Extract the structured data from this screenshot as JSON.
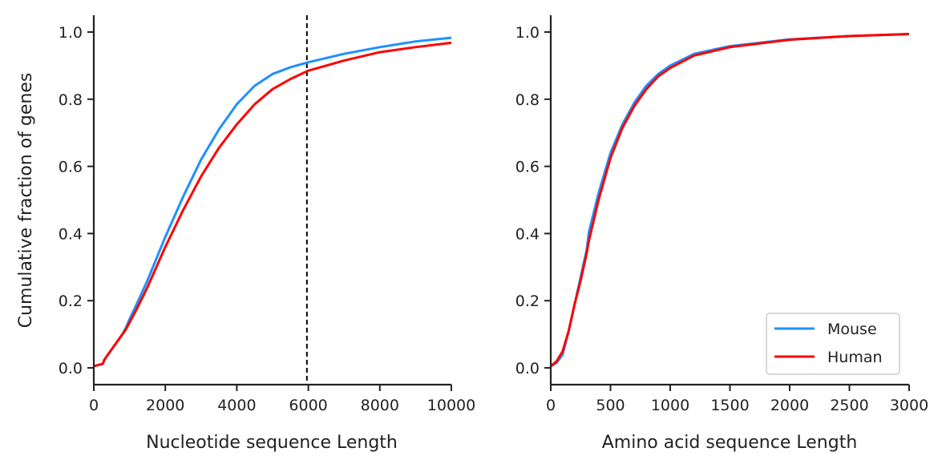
{
  "figure": {
    "ylabel": "Cumulative fraction of genes"
  },
  "chart_data": [
    {
      "type": "line",
      "xlabel": "Nucleotide sequence Length",
      "ylabel": "Cumulative fraction of genes",
      "xlim": [
        0,
        10000
      ],
      "ylim": [
        -0.05,
        1.05
      ],
      "x_ticks": [
        0,
        2000,
        4000,
        6000,
        8000,
        10000
      ],
      "x_tick_labels": [
        "0",
        "2000",
        "4000",
        "6000",
        "8000",
        "10000"
      ],
      "y_ticks": [
        0.0,
        0.2,
        0.4,
        0.6,
        0.8,
        1.0
      ],
      "y_tick_labels": [
        "0.0",
        "0.2",
        "0.4",
        "0.6",
        "0.8",
        "1.0"
      ],
      "grid": false,
      "reference_line": {
        "orientation": "vertical",
        "x": 5960,
        "style": "dashed",
        "color": "#000000"
      },
      "series": [
        {
          "color": "#1e90ff",
          "x": [
            0,
            250,
            300,
            400,
            600,
            800,
            900,
            1000,
            1200,
            1500,
            2000,
            2500,
            3000,
            3500,
            4000,
            4500,
            5000,
            5500,
            6000,
            7000,
            8000,
            9000,
            10000
          ],
          "y": [
            0.005,
            0.012,
            0.025,
            0.04,
            0.07,
            0.1,
            0.12,
            0.145,
            0.19,
            0.26,
            0.39,
            0.51,
            0.62,
            0.71,
            0.785,
            0.84,
            0.875,
            0.895,
            0.91,
            0.935,
            0.955,
            0.972,
            0.983
          ]
        },
        {
          "color": "#ff0000",
          "x": [
            0,
            250,
            300,
            400,
            600,
            800,
            900,
            1000,
            1200,
            1500,
            2000,
            2500,
            3000,
            3500,
            4000,
            4500,
            5000,
            5500,
            6000,
            7000,
            8000,
            9000,
            10000
          ],
          "y": [
            0.005,
            0.012,
            0.025,
            0.04,
            0.07,
            0.1,
            0.115,
            0.135,
            0.175,
            0.24,
            0.36,
            0.47,
            0.57,
            0.655,
            0.725,
            0.785,
            0.83,
            0.86,
            0.885,
            0.915,
            0.94,
            0.955,
            0.968
          ]
        }
      ]
    },
    {
      "type": "line",
      "xlabel": "Amino acid sequence Length",
      "xlim": [
        0,
        3000
      ],
      "ylim": [
        -0.05,
        1.05
      ],
      "x_ticks": [
        0,
        500,
        1000,
        1500,
        2000,
        2500,
        3000
      ],
      "x_tick_labels": [
        "0",
        "500",
        "1000",
        "1500",
        "2000",
        "2500",
        "3000"
      ],
      "y_ticks": [
        0.0,
        0.2,
        0.4,
        0.6,
        0.8,
        1.0
      ],
      "y_tick_labels": [
        "0.0",
        "0.2",
        "0.4",
        "0.6",
        "0.8",
        "1.0"
      ],
      "grid": false,
      "legend": {
        "placement": "lower-right"
      },
      "series": [
        {
          "name": "Mouse",
          "color": "#1e90ff",
          "x": [
            0,
            50,
            100,
            150,
            200,
            250,
            300,
            320,
            400,
            500,
            600,
            700,
            800,
            900,
            1000,
            1200,
            1500,
            2000,
            2500,
            3000
          ],
          "y": [
            0.005,
            0.015,
            0.04,
            0.11,
            0.19,
            0.27,
            0.35,
            0.405,
            0.52,
            0.64,
            0.725,
            0.79,
            0.84,
            0.875,
            0.9,
            0.935,
            0.958,
            0.978,
            0.988,
            0.994
          ]
        },
        {
          "name": "Human",
          "color": "#ff0000",
          "x": [
            0,
            50,
            100,
            150,
            200,
            250,
            300,
            320,
            400,
            500,
            600,
            700,
            800,
            900,
            1000,
            1200,
            1500,
            2000,
            2500,
            3000
          ],
          "y": [
            0.005,
            0.02,
            0.05,
            0.11,
            0.19,
            0.26,
            0.34,
            0.38,
            0.5,
            0.625,
            0.715,
            0.78,
            0.83,
            0.868,
            0.893,
            0.93,
            0.955,
            0.977,
            0.988,
            0.994
          ]
        }
      ]
    }
  ]
}
